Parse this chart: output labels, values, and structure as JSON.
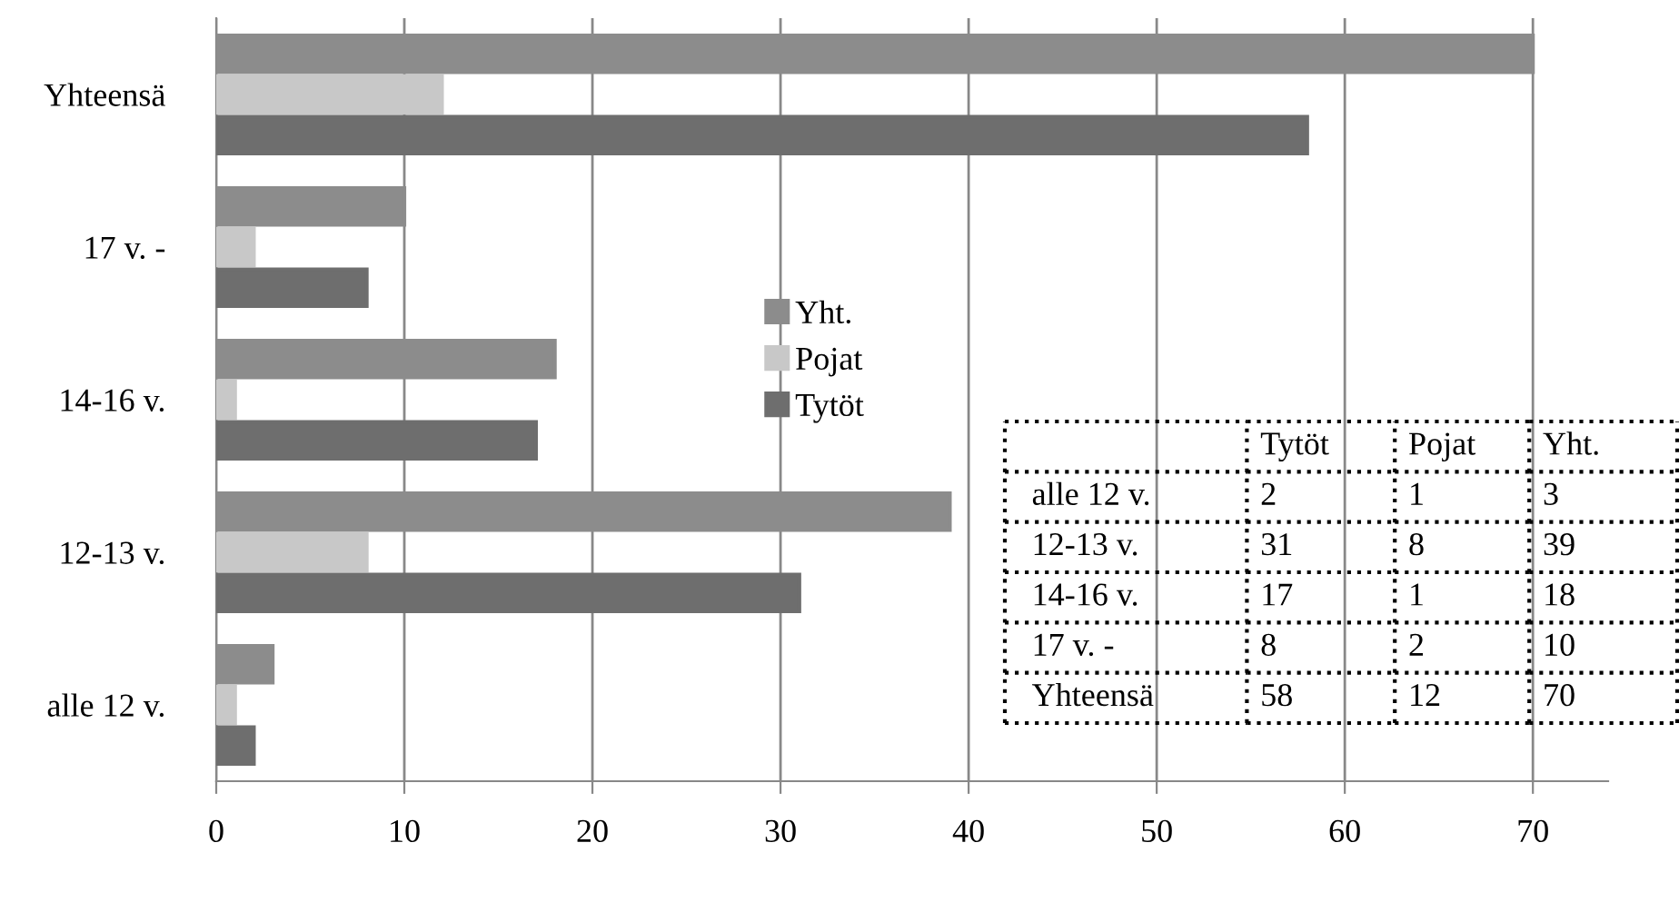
{
  "chart_data": [
    {
      "type": "bar",
      "orientation": "horizontal",
      "categories": [
        "Yhteensä",
        "17 v. -",
        "14-16 v.",
        "12-13 v.",
        "alle 12 v."
      ],
      "series": [
        {
          "name": "Yht.",
          "color": "#8c8c8c",
          "values": [
            70,
            10,
            18,
            39,
            3
          ]
        },
        {
          "name": "Pojat",
          "color": "#c8c8c8",
          "values": [
            12,
            2,
            1,
            8,
            1
          ]
        },
        {
          "name": "Tytöt",
          "color": "#6e6e6e",
          "values": [
            58,
            8,
            17,
            31,
            2
          ]
        }
      ],
      "xlim": [
        0,
        74
      ],
      "xticks": [
        0,
        10,
        20,
        30,
        40,
        50,
        60,
        70
      ],
      "grid": "x",
      "legend": "center"
    },
    {
      "type": "other",
      "data_labels": true,
      "categories": [
        "alle 12 v.",
        "12-13 v.",
        "14-16 v.",
        "17 v. -",
        "Yhteensä"
      ],
      "series": [
        {
          "name": "Tytöt",
          "values": [
            2,
            31,
            17,
            8,
            58
          ]
        },
        {
          "name": "Pojat",
          "values": [
            1,
            8,
            1,
            2,
            12
          ]
        },
        {
          "name": "Yht.",
          "values": [
            3,
            39,
            18,
            10,
            70
          ]
        }
      ]
    }
  ]
}
